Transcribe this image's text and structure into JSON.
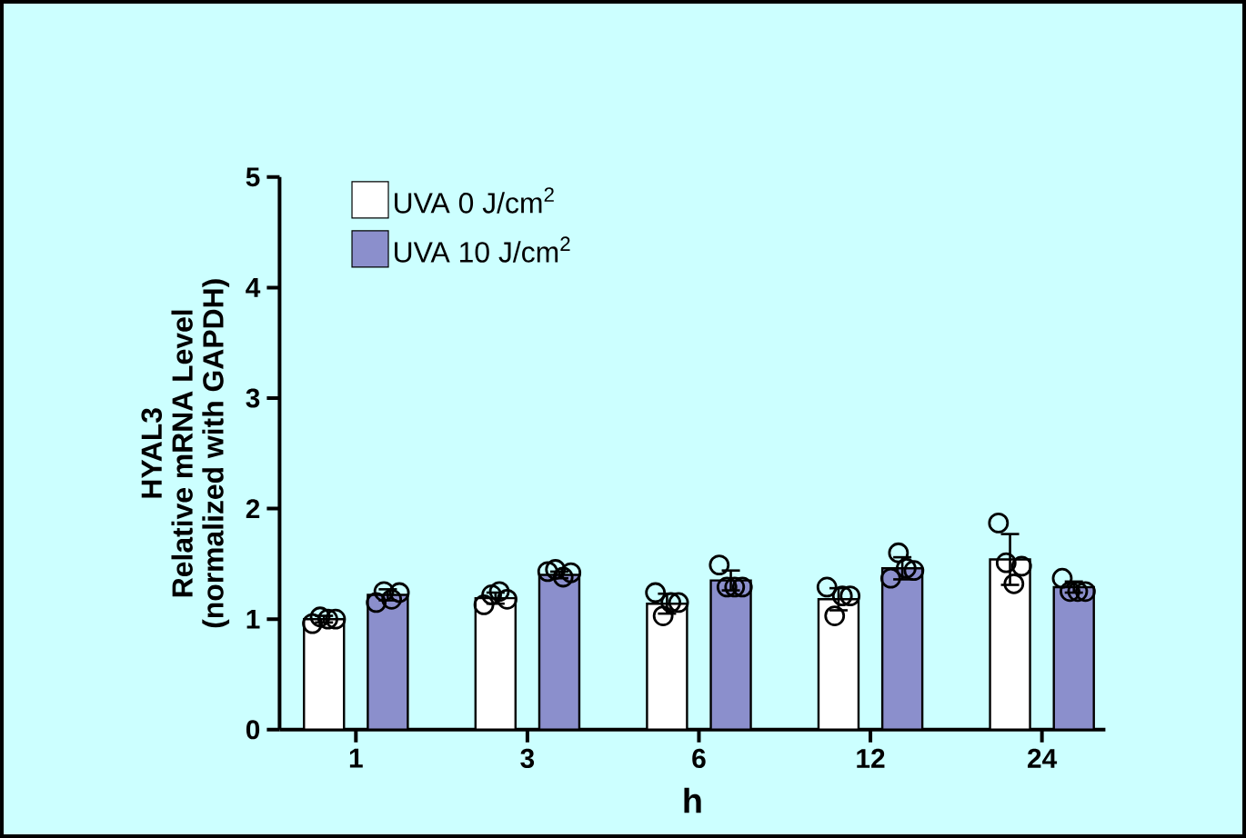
{
  "chart_data": {
    "type": "bar",
    "xlabel": "h",
    "ylabel": "HYAL3\nRelative mRNA Level\n(normalized with GAPDH)",
    "categories": [
      "1",
      "3",
      "6",
      "12",
      "24"
    ],
    "ylim": [
      0,
      5
    ],
    "yticks": [
      0,
      1,
      2,
      3,
      4,
      5
    ],
    "legend": "top left",
    "grid": false,
    "series": [
      {
        "name": "UVA  0 J/cm$^{2}$",
        "color": "#ffffff",
        "values": [
          1.0,
          1.19,
          1.14,
          1.18,
          1.54
        ],
        "errors": [
          0.03,
          0.05,
          0.09,
          0.1,
          0.23
        ]
      },
      {
        "name": "UVA 10 J/cm$^{2}$",
        "color": "#8b8fcc",
        "values": [
          1.22,
          1.4,
          1.35,
          1.46,
          1.29
        ],
        "errors": [
          0.05,
          0.03,
          0.09,
          0.1,
          0.05
        ]
      },
      {
        "type": "scatter",
        "marker": "circle",
        "color": "#000000",
        "x": [
          "1",
          "1",
          "1",
          "1",
          "3",
          "3",
          "3",
          "3",
          "6",
          "6",
          "6",
          "6",
          "12",
          "12",
          "12",
          "12",
          "24",
          "24",
          "24",
          "24"
        ],
        "values": [
          0.96,
          1.02,
          1.0,
          1.0,
          1.13,
          1.22,
          1.25,
          1.18,
          1.24,
          1.03,
          1.15,
          1.15,
          1.29,
          1.03,
          1.21,
          1.21,
          1.87,
          1.51,
          1.32,
          1.48
        ]
      },
      {
        "type": "scatter",
        "marker": "circle",
        "color": "#000000",
        "x": [
          "1",
          "1",
          "1",
          "1",
          "3",
          "3",
          "3",
          "3",
          "6",
          "6",
          "6",
          "6",
          "12",
          "12",
          "12",
          "12",
          "24",
          "24",
          "24",
          "24"
        ],
        "values": [
          1.15,
          1.25,
          1.18,
          1.24,
          1.43,
          1.45,
          1.38,
          1.42,
          1.49,
          1.29,
          1.29,
          1.29,
          1.37,
          1.6,
          1.46,
          1.44,
          1.37,
          1.25,
          1.25,
          1.25
        ]
      }
    ]
  }
}
